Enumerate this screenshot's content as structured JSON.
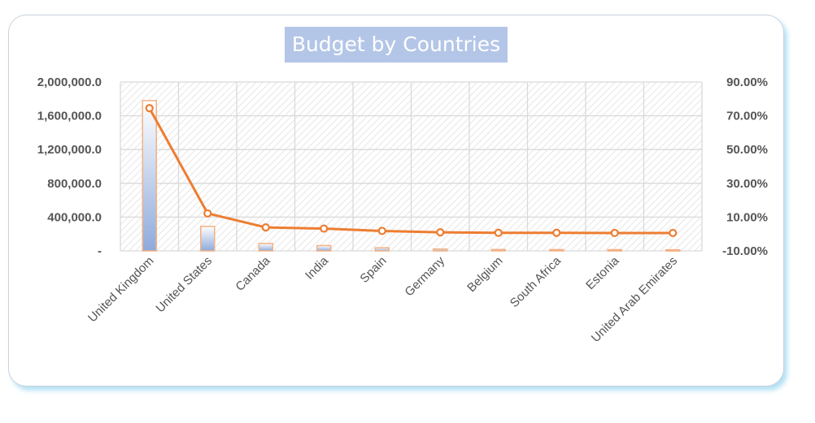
{
  "chart_data": {
    "type": "bar",
    "title": "Budget by Countries",
    "categories": [
      "United Kingdom",
      "United States",
      "Canada",
      "India",
      "Spain",
      "Germany",
      "Belgium",
      "South Africa",
      "Estonia",
      "United Arab Emirates"
    ],
    "series": [
      {
        "type": "bar",
        "axis": "left",
        "values": [
          1780000,
          290000,
          88000,
          63000,
          36000,
          22000,
          16000,
          15000,
          14000,
          13000
        ]
      },
      {
        "type": "line",
        "axis": "right",
        "values": [
          0.745,
          0.122,
          0.039,
          0.032,
          0.018,
          0.01,
          0.007,
          0.007,
          0.006,
          0.006
        ]
      }
    ],
    "y_left": {
      "ylim": [
        0,
        2000000
      ],
      "ticks": [
        0,
        400000,
        800000,
        1200000,
        1600000,
        2000000
      ],
      "tick_labels": [
        "-",
        "400,000.0",
        "800,000.0",
        "1,200,000.0",
        "1,600,000.0",
        "2,000,000.0"
      ]
    },
    "y_right": {
      "ylim": [
        -0.1,
        0.9
      ],
      "ticks": [
        -0.1,
        0.1,
        0.3,
        0.5,
        0.7,
        0.9
      ],
      "tick_labels": [
        "-10.00%",
        "10.00%",
        "30.00%",
        "50.00%",
        "70.00%",
        "90.00%"
      ]
    },
    "grid": true,
    "legend": "none",
    "colors": {
      "bar_fill_top": "#ffffff",
      "bar_fill_bottom": "#8eaadb",
      "bar_border": "#f4b183",
      "line": "#ed7d31",
      "title_bg": "#b4c6e7",
      "grid": "#d9d9d9",
      "hatch": "#d6d6d6"
    }
  }
}
